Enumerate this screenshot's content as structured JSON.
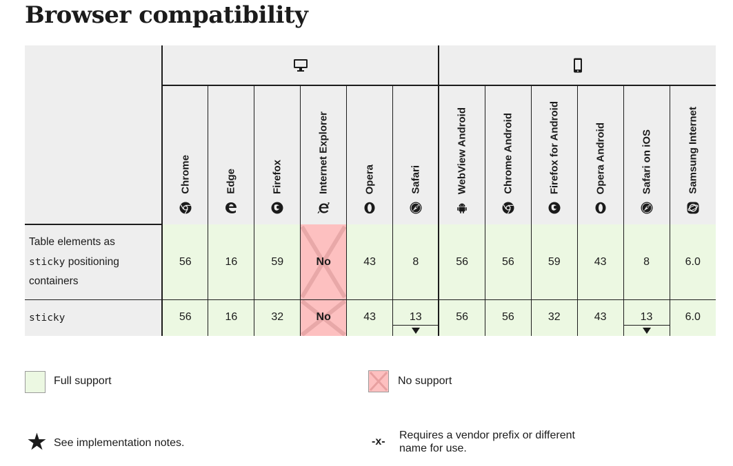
{
  "page": {
    "title": "Browser compatibility"
  },
  "platforms": {
    "desktop_icon": "desktop-icon",
    "mobile_icon": "mobile-icon"
  },
  "browsers": [
    {
      "name": "Chrome",
      "icon": "chrome-icon"
    },
    {
      "name": "Edge",
      "icon": "edge-icon"
    },
    {
      "name": "Firefox",
      "icon": "firefox-icon"
    },
    {
      "name": "Internet Explorer",
      "icon": "internet-explorer-icon"
    },
    {
      "name": "Opera",
      "icon": "opera-icon"
    },
    {
      "name": "Safari",
      "icon": "safari-icon"
    },
    {
      "name": "WebView Android",
      "icon": "android-icon"
    },
    {
      "name": "Chrome Android",
      "icon": "chrome-icon"
    },
    {
      "name": "Firefox for Android",
      "icon": "firefox-icon"
    },
    {
      "name": "Opera Android",
      "icon": "opera-icon"
    },
    {
      "name": "Safari on iOS",
      "icon": "safari-icon"
    },
    {
      "name": "Samsung Internet",
      "icon": "samsung-internet-icon"
    }
  ],
  "rows": [
    {
      "feature_parts": [
        "Table elements as",
        "sticky",
        "positioning",
        "containers"
      ],
      "values": [
        "56",
        "16",
        "59",
        "No",
        "43",
        "8",
        "56",
        "56",
        "59",
        "43",
        "8",
        "6.0"
      ]
    },
    {
      "feature_parts": [
        "sticky"
      ],
      "values": [
        "56",
        "16",
        "32",
        "No",
        "43",
        "13",
        "56",
        "56",
        "32",
        "43",
        "13",
        "6.0"
      ]
    }
  ],
  "support_status": {
    "row0": [
      "yes",
      "yes",
      "yes",
      "no",
      "yes",
      "yes",
      "yes",
      "yes",
      "yes",
      "yes",
      "yes",
      "yes"
    ],
    "row1": [
      "yes",
      "yes",
      "yes",
      "no",
      "yes",
      "yes",
      "yes",
      "yes",
      "yes",
      "yes",
      "yes",
      "yes"
    ],
    "row1_has_notes": [
      false,
      false,
      false,
      false,
      false,
      true,
      false,
      false,
      false,
      false,
      true,
      false
    ]
  },
  "legend": {
    "full_support": "Full support",
    "no_support": "No support",
    "implementation_notes": "See implementation notes.",
    "vendor_prefix": "Requires a vendor prefix or different name for use.",
    "vendor_prefix_icon_text": "-x-",
    "notes_icon": "asterisk-icon"
  },
  "colors": {
    "full_support_bg": "#ecf8e2",
    "no_support_bg": "#fdc0c0",
    "header_bg": "#eeeeee",
    "border": "#1b1b1b"
  }
}
